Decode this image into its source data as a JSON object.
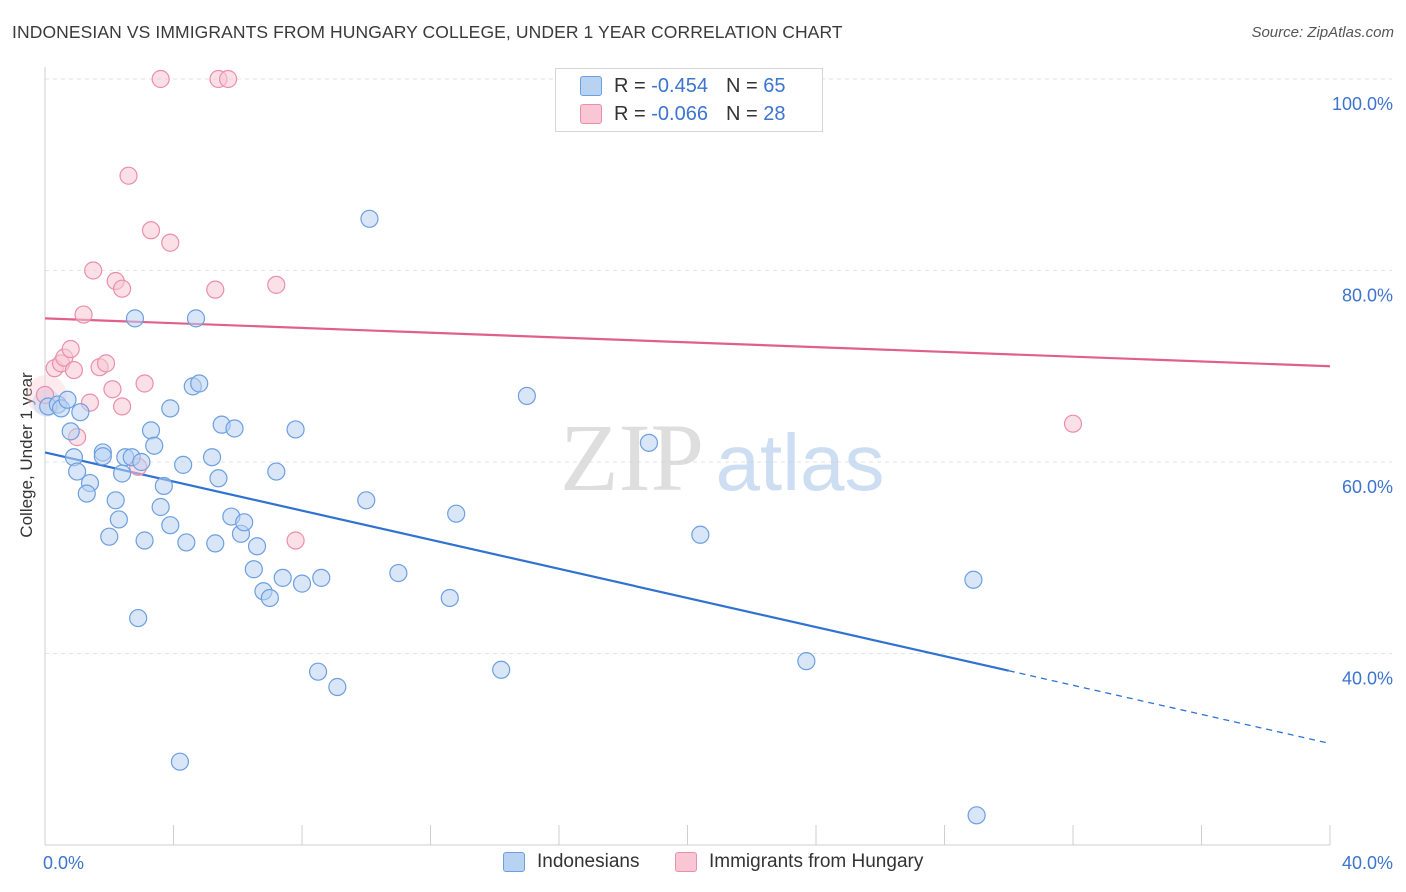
{
  "header": {
    "title": "INDONESIAN VS IMMIGRANTS FROM HUNGARY COLLEGE, UNDER 1 YEAR CORRELATION CHART",
    "source": "Source: ZipAtlas.com"
  },
  "watermark": {
    "zip": "ZIP",
    "atlas": "atlas"
  },
  "legend": {
    "r_label": "R =",
    "n_label": "N =",
    "rows": [
      {
        "r": "-0.454",
        "n": "65"
      },
      {
        "r": "-0.066",
        "n": "28"
      }
    ]
  },
  "colors": {
    "indonesians_fill": "#b8d2f2",
    "indonesians_stroke": "#6d9fe0",
    "indonesians_line": "#2f72d2",
    "hungary_fill": "#f8c6d4",
    "hungary_stroke": "#ea8fab",
    "hungary_line": "#e0608a",
    "axis_label": "#3c74d0",
    "grid": "#e3e3e3"
  },
  "chart_data": {
    "type": "scatter",
    "title": "INDONESIAN VS IMMIGRANTS FROM HUNGARY COLLEGE, UNDER 1 YEAR CORRELATION CHART",
    "xlabel": "",
    "ylabel": "College, Under 1 year",
    "xlim": [
      0,
      40
    ],
    "ylim": [
      20,
      100
    ],
    "x_tick_labels": [
      "0.0%",
      "40.0%"
    ],
    "y_ticks": [
      40,
      60,
      80,
      100
    ],
    "y_tick_labels": [
      "40.0%",
      "60.0%",
      "80.0%",
      "100.0%"
    ],
    "grid": true,
    "legend_position": "bottom",
    "series": [
      {
        "name": "Indonesians",
        "r": -0.454,
        "n": 65,
        "trend": {
          "x0": 0,
          "y0": 61.0,
          "x1": 30,
          "y1": 38.2,
          "dash_to_x": 40,
          "dash_to_y": 30.6
        },
        "points": [
          [
            0.1,
            65.8
          ],
          [
            0.4,
            66.0
          ],
          [
            0.5,
            65.6
          ],
          [
            0.7,
            66.5
          ],
          [
            0.8,
            63.2
          ],
          [
            0.9,
            60.5
          ],
          [
            1.0,
            59.0
          ],
          [
            1.1,
            65.2
          ],
          [
            1.4,
            57.8
          ],
          [
            1.3,
            56.7
          ],
          [
            1.8,
            61.0
          ],
          [
            1.8,
            60.6
          ],
          [
            2.2,
            56.0
          ],
          [
            2.3,
            54.0
          ],
          [
            2.0,
            52.2
          ],
          [
            2.4,
            58.8
          ],
          [
            2.5,
            60.5
          ],
          [
            2.7,
            60.5
          ],
          [
            2.8,
            75.0
          ],
          [
            3.1,
            51.8
          ],
          [
            3.3,
            63.3
          ],
          [
            3.4,
            61.7
          ],
          [
            3.6,
            55.3
          ],
          [
            3.7,
            57.5
          ],
          [
            3.9,
            53.4
          ],
          [
            3.9,
            65.6
          ],
          [
            4.3,
            59.7
          ],
          [
            4.4,
            51.6
          ],
          [
            4.7,
            75.0
          ],
          [
            4.6,
            67.9
          ],
          [
            4.8,
            68.2
          ],
          [
            5.2,
            60.5
          ],
          [
            5.3,
            51.5
          ],
          [
            5.4,
            58.3
          ],
          [
            5.5,
            63.9
          ],
          [
            5.8,
            54.3
          ],
          [
            5.9,
            63.5
          ],
          [
            6.1,
            52.5
          ],
          [
            6.2,
            53.7
          ],
          [
            6.6,
            51.2
          ],
          [
            6.5,
            48.8
          ],
          [
            6.8,
            46.5
          ],
          [
            7.0,
            45.8
          ],
          [
            7.2,
            59.0
          ],
          [
            7.4,
            47.9
          ],
          [
            8.0,
            47.3
          ],
          [
            7.8,
            63.4
          ],
          [
            8.6,
            47.9
          ],
          [
            8.5,
            38.1
          ],
          [
            9.1,
            36.5
          ],
          [
            10.0,
            56.0
          ],
          [
            11.0,
            48.4
          ],
          [
            10.1,
            85.4
          ],
          [
            12.6,
            45.8
          ],
          [
            12.8,
            54.6
          ],
          [
            14.2,
            38.3
          ],
          [
            15.0,
            66.9
          ],
          [
            18.8,
            62.0
          ],
          [
            20.4,
            52.4
          ],
          [
            23.7,
            39.2
          ],
          [
            28.9,
            47.7
          ],
          [
            29.0,
            23.1
          ],
          [
            2.9,
            43.7
          ],
          [
            4.2,
            28.7
          ],
          [
            3.0,
            60.0
          ]
        ]
      },
      {
        "name": "Immigrants from Hungary",
        "r": -0.066,
        "n": 28,
        "trend": {
          "x0": 0,
          "y0": 75.0,
          "x1": 40,
          "y1": 70.0
        },
        "points": [
          [
            0.0,
            67.0
          ],
          [
            0.3,
            69.8
          ],
          [
            0.5,
            70.3
          ],
          [
            0.6,
            70.9
          ],
          [
            0.8,
            71.8
          ],
          [
            0.9,
            69.6
          ],
          [
            1.0,
            62.6
          ],
          [
            1.2,
            75.4
          ],
          [
            1.4,
            66.2
          ],
          [
            1.5,
            80.0
          ],
          [
            1.7,
            69.9
          ],
          [
            1.9,
            70.3
          ],
          [
            2.1,
            67.6
          ],
          [
            2.2,
            78.9
          ],
          [
            2.4,
            78.1
          ],
          [
            2.4,
            65.8
          ],
          [
            2.6,
            89.9
          ],
          [
            2.9,
            59.5
          ],
          [
            3.1,
            68.2
          ],
          [
            3.3,
            84.2
          ],
          [
            3.6,
            100.0
          ],
          [
            3.9,
            82.9
          ],
          [
            5.3,
            78.0
          ],
          [
            5.4,
            100.0
          ],
          [
            5.7,
            100.0
          ],
          [
            7.2,
            78.5
          ],
          [
            7.8,
            51.8
          ],
          [
            32.0,
            64.0
          ]
        ]
      }
    ]
  }
}
